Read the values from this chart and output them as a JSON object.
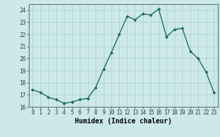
{
  "x": [
    0,
    1,
    2,
    3,
    4,
    5,
    6,
    7,
    8,
    9,
    10,
    11,
    12,
    13,
    14,
    15,
    16,
    17,
    18,
    19,
    20,
    21,
    22,
    23
  ],
  "y": [
    17.4,
    17.2,
    16.8,
    16.6,
    16.3,
    16.4,
    16.6,
    16.7,
    17.6,
    19.1,
    20.5,
    22.0,
    23.5,
    23.2,
    23.7,
    23.6,
    24.1,
    21.8,
    22.4,
    22.5,
    20.6,
    20.0,
    18.9,
    17.2
  ],
  "line_color": "#1a6b5a",
  "marker": "D",
  "marker_size": 2,
  "bg_color": "#cce8e8",
  "grid_color": "#aacccc",
  "xlabel": "Humidex (Indice chaleur)",
  "ylim": [
    16,
    24.5
  ],
  "xlim": [
    -0.5,
    23.5
  ],
  "yticks": [
    16,
    17,
    18,
    19,
    20,
    21,
    22,
    23,
    24
  ],
  "xticks": [
    0,
    1,
    2,
    3,
    4,
    5,
    6,
    7,
    8,
    9,
    10,
    11,
    12,
    13,
    14,
    15,
    16,
    17,
    18,
    19,
    20,
    21,
    22,
    23
  ],
  "tick_fontsize": 5.5,
  "xlabel_fontsize": 7.0,
  "line_width": 1.0
}
